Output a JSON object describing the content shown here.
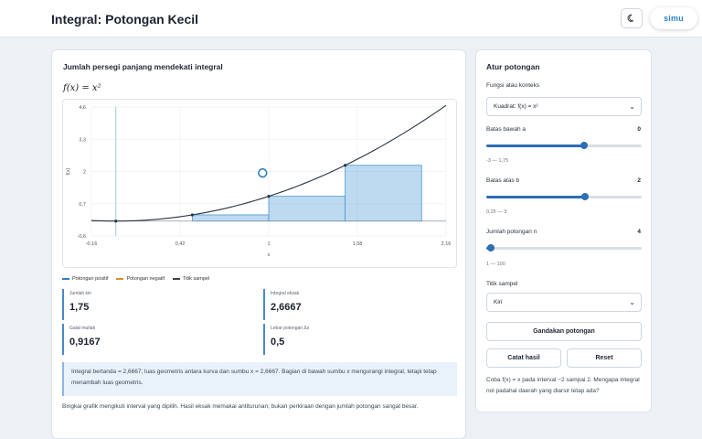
{
  "header": {
    "title": "Integral: Potongan Kecil",
    "logo": "simu",
    "theme_icon": "moon-icon"
  },
  "left": {
    "heading": "Jumlah persegi panjang mendekati integral",
    "formula": "f(x) = x²",
    "legend": [
      {
        "label": "Potongan positif",
        "color": "#2f7fc1"
      },
      {
        "label": "Potongan negatif",
        "color": "#d9902a"
      },
      {
        "label": "Titik sampel",
        "color": "#444444"
      }
    ],
    "stats": {
      "sum_left": {
        "label": "Jumlah kiri",
        "value": "1,75"
      },
      "exact": {
        "label": "Integral eksak",
        "value": "2,6667"
      },
      "error": {
        "label": "Galat mutlak",
        "value": "0,9167"
      },
      "width": {
        "label": "Lebar potongan Δx",
        "value": "0,5"
      }
    },
    "note": "Integral bertanda = 2,6667; luas geometris antara kurva dan sumbu x = 2,6667. Bagian di bawah sumbu x mengurangi integral, tetapi tetap menambah luas geometris.",
    "footer": "Bingkai grafik mengikuti interval yang dipilih. Hasil eksak memakai antiturunan; bukan perkiraan dengan jumlah potongan sangat besar."
  },
  "chart_data": {
    "type": "line",
    "function": "x^2",
    "xlabel": "x",
    "ylabel": "f(x)",
    "xlim": [
      -0.16,
      2.16
    ],
    "ylim": [
      -0.6,
      4.6
    ],
    "x_ticks": [
      "-0,16",
      "0,42",
      "1",
      "1,58",
      "2,16"
    ],
    "y_ticks": [
      "4,6",
      "3,3",
      "2",
      "0,7",
      "-0,6"
    ],
    "interval": [
      0,
      2
    ],
    "n": 4,
    "rule": "left",
    "rectangles": [
      {
        "x0": 0,
        "x1": 0.5,
        "height": 0
      },
      {
        "x0": 0.5,
        "x1": 1,
        "height": 0.25
      },
      {
        "x0": 1,
        "x1": 1.5,
        "height": 1
      },
      {
        "x0": 1.5,
        "x1": 2,
        "height": 2.25
      }
    ],
    "sample_points": [
      [
        0,
        0
      ],
      [
        0.5,
        0.25
      ],
      [
        1,
        1
      ],
      [
        1.5,
        2.25
      ]
    ],
    "marker": [
      0.96,
      1.94
    ]
  },
  "right": {
    "heading": "Atur potongan",
    "function_label": "Fungsi atau konteks",
    "function_value": "Kuadrat: f(x) = x²",
    "lower": {
      "label": "Batas bawah a",
      "value": "0",
      "range": "-3 — 1,75",
      "fraction": 0.632
    },
    "upper": {
      "label": "Batas atas b",
      "value": "2",
      "range": "0,25 — 3",
      "fraction": 0.636
    },
    "count": {
      "label": "Jumlah potongan n",
      "value": "4",
      "range": "1 — 100",
      "fraction": 0.03
    },
    "sample_label": "Titik sampel",
    "sample_value": "Kiri",
    "double_button": "Gandakan potongan",
    "record_button": "Catat hasil",
    "reset_button": "Reset",
    "hint": "Coba f(x) = x pada interval −2 sampai 2. Mengapa integral nol padahal daerah yang diarsir tetap ada?"
  }
}
